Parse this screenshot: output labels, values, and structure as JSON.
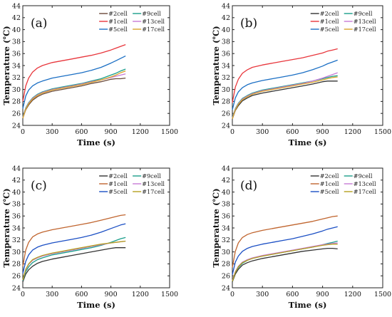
{
  "chart_data": [
    {
      "type": "line",
      "panel_label": "(a)",
      "xlabel": "Time (s)",
      "ylabel": "Temperature (℃)",
      "xlim": [
        0,
        1500
      ],
      "ylim": [
        24,
        44
      ],
      "xticks": [
        "0",
        "300",
        "600",
        "900",
        "1200",
        "1500"
      ],
      "yticks": [
        "24",
        "26",
        "28",
        "30",
        "32",
        "34",
        "36",
        "38",
        "40",
        "42",
        "44"
      ],
      "legend_position": "top-right",
      "series": [
        {
          "name": "#2cell",
          "color": "#6b4a3a",
          "x": [
            0,
            30,
            60,
            100,
            150,
            200,
            300,
            400,
            500,
            600,
            700,
            800,
            900,
            950,
            1000,
            1050
          ],
          "y": [
            25.2,
            26.6,
            27.4,
            28.2,
            28.8,
            29.2,
            29.7,
            30.0,
            30.3,
            30.6,
            31.0,
            31.3,
            31.7,
            31.8,
            31.8,
            31.9
          ]
        },
        {
          "name": "#9cell",
          "color": "#1a9e8a",
          "x": [
            0,
            30,
            60,
            100,
            150,
            200,
            300,
            400,
            500,
            600,
            700,
            800,
            900,
            950,
            1000,
            1050
          ],
          "y": [
            25.4,
            26.9,
            27.8,
            28.6,
            29.2,
            29.6,
            30.1,
            30.4,
            30.7,
            31.0,
            31.4,
            31.8,
            32.4,
            32.7,
            33.1,
            33.4
          ]
        },
        {
          "name": "#1cell",
          "color": "#e8363c",
          "x": [
            0,
            30,
            60,
            100,
            150,
            200,
            300,
            400,
            500,
            600,
            700,
            800,
            900,
            950,
            1000,
            1050
          ],
          "y": [
            28.0,
            30.6,
            31.9,
            32.9,
            33.6,
            34.0,
            34.5,
            34.8,
            35.1,
            35.4,
            35.7,
            36.1,
            36.6,
            36.9,
            37.2,
            37.5
          ]
        },
        {
          "name": "#13cell",
          "color": "#c77ad6",
          "x": [
            0,
            30,
            60,
            100,
            150,
            200,
            300,
            400,
            500,
            600,
            700,
            800,
            900,
            950,
            1000,
            1050
          ],
          "y": [
            25.3,
            26.8,
            27.7,
            28.5,
            29.1,
            29.5,
            30.0,
            30.3,
            30.6,
            30.9,
            31.3,
            31.6,
            32.0,
            32.2,
            32.4,
            32.6
          ]
        },
        {
          "name": "#5cell",
          "color": "#1b6fc4",
          "x": [
            0,
            30,
            60,
            100,
            150,
            200,
            300,
            400,
            500,
            600,
            700,
            800,
            900,
            950,
            1000,
            1050
          ],
          "y": [
            26.8,
            28.9,
            29.9,
            30.6,
            31.1,
            31.4,
            31.9,
            32.2,
            32.5,
            32.8,
            33.2,
            33.7,
            34.4,
            34.8,
            35.2,
            35.6
          ]
        },
        {
          "name": "#17cell",
          "color": "#d9a42a",
          "x": [
            0,
            30,
            60,
            100,
            150,
            200,
            300,
            400,
            500,
            600,
            700,
            800,
            900,
            950,
            1000,
            1050
          ],
          "y": [
            25.2,
            26.7,
            27.6,
            28.4,
            29.0,
            29.4,
            29.9,
            30.2,
            30.5,
            30.8,
            31.2,
            31.6,
            32.1,
            32.4,
            32.8,
            33.1
          ]
        }
      ]
    },
    {
      "type": "line",
      "panel_label": "(b)",
      "xlabel": "Time (s)",
      "ylabel": "Temperature (℃)",
      "xlim": [
        0,
        1500
      ],
      "ylim": [
        24,
        44
      ],
      "xticks": [
        "0",
        "300",
        "600",
        "900",
        "1200",
        "1500"
      ],
      "yticks": [
        "24",
        "26",
        "28",
        "30",
        "32",
        "34",
        "36",
        "38",
        "40",
        "42",
        "44"
      ],
      "legend_position": "top-right",
      "series": [
        {
          "name": "#2cell",
          "color": "#333333",
          "x": [
            0,
            30,
            60,
            100,
            150,
            200,
            300,
            400,
            500,
            600,
            700,
            800,
            900,
            950,
            1000,
            1050
          ],
          "y": [
            25.1,
            26.5,
            27.3,
            28.1,
            28.6,
            29.0,
            29.4,
            29.7,
            30.0,
            30.3,
            30.6,
            30.9,
            31.3,
            31.4,
            31.4,
            31.4
          ]
        },
        {
          "name": "#9cell",
          "color": "#1a9e8a",
          "x": [
            0,
            30,
            60,
            100,
            150,
            200,
            300,
            400,
            500,
            600,
            700,
            800,
            900,
            950,
            1000,
            1050
          ],
          "y": [
            25.3,
            26.8,
            27.7,
            28.5,
            29.0,
            29.4,
            29.9,
            30.2,
            30.5,
            30.8,
            31.1,
            31.4,
            31.8,
            32.0,
            32.2,
            32.3
          ]
        },
        {
          "name": "#1cell",
          "color": "#e8363c",
          "x": [
            0,
            30,
            60,
            100,
            150,
            200,
            300,
            400,
            500,
            600,
            700,
            800,
            900,
            950,
            1000,
            1050
          ],
          "y": [
            27.8,
            30.4,
            31.7,
            32.7,
            33.3,
            33.7,
            34.1,
            34.4,
            34.7,
            35.0,
            35.3,
            35.7,
            36.1,
            36.4,
            36.6,
            36.8
          ]
        },
        {
          "name": "#13cell",
          "color": "#c77ad6",
          "x": [
            0,
            30,
            60,
            100,
            150,
            200,
            300,
            400,
            500,
            600,
            700,
            800,
            900,
            950,
            1000,
            1050
          ],
          "y": [
            25.2,
            26.7,
            27.6,
            28.4,
            28.9,
            29.3,
            29.8,
            30.1,
            30.4,
            30.7,
            31.0,
            31.4,
            31.9,
            32.2,
            32.5,
            32.8
          ]
        },
        {
          "name": "#5cell",
          "color": "#1b6fc4",
          "x": [
            0,
            30,
            60,
            100,
            150,
            200,
            300,
            400,
            500,
            600,
            700,
            800,
            900,
            950,
            1000,
            1050
          ],
          "y": [
            26.6,
            28.6,
            29.6,
            30.3,
            30.8,
            31.1,
            31.5,
            31.8,
            32.1,
            32.4,
            32.8,
            33.3,
            33.9,
            34.3,
            34.6,
            34.9
          ]
        },
        {
          "name": "#17cell",
          "color": "#d9a42a",
          "x": [
            0,
            30,
            60,
            100,
            150,
            200,
            300,
            400,
            500,
            600,
            700,
            800,
            900,
            950,
            1000,
            1050
          ],
          "y": [
            25.1,
            26.6,
            27.5,
            28.3,
            28.8,
            29.2,
            29.7,
            30.0,
            30.3,
            30.6,
            30.9,
            31.2,
            31.6,
            31.8,
            32.0,
            32.1
          ]
        }
      ]
    },
    {
      "type": "line",
      "panel_label": "(c)",
      "xlabel": "Time (s)",
      "ylabel": "Temperature (℃)",
      "xlim": [
        0,
        1500
      ],
      "ylim": [
        24,
        44
      ],
      "xticks": [
        "0",
        "300",
        "600",
        "900",
        "1200",
        "1500"
      ],
      "yticks": [
        "24",
        "26",
        "28",
        "30",
        "32",
        "34",
        "36",
        "38",
        "40",
        "42",
        "44"
      ],
      "legend_position": "top-right",
      "series": [
        {
          "name": "#2cell",
          "color": "#333333",
          "x": [
            0,
            30,
            60,
            100,
            150,
            200,
            300,
            400,
            500,
            600,
            700,
            800,
            900,
            950,
            1000,
            1050
          ],
          "y": [
            25.0,
            26.3,
            27.0,
            27.6,
            28.1,
            28.4,
            28.8,
            29.1,
            29.4,
            29.7,
            30.0,
            30.3,
            30.6,
            30.7,
            30.7,
            30.7
          ]
        },
        {
          "name": "#9cell",
          "color": "#1a9e8a",
          "x": [
            0,
            30,
            60,
            100,
            150,
            200,
            300,
            400,
            500,
            600,
            700,
            800,
            900,
            950,
            1000,
            1050
          ],
          "y": [
            25.2,
            26.7,
            27.5,
            28.2,
            28.7,
            29.0,
            29.5,
            29.8,
            30.1,
            30.4,
            30.7,
            31.1,
            31.6,
            31.9,
            32.2,
            32.4
          ]
        },
        {
          "name": "#1cell",
          "color": "#c0652f",
          "x": [
            0,
            30,
            60,
            100,
            150,
            200,
            300,
            400,
            500,
            600,
            700,
            800,
            900,
            950,
            1000,
            1050
          ],
          "y": [
            27.6,
            30.3,
            31.6,
            32.5,
            33.0,
            33.3,
            33.7,
            34.0,
            34.3,
            34.6,
            34.9,
            35.3,
            35.7,
            35.9,
            36.1,
            36.2
          ]
        },
        {
          "name": "#13cell",
          "color": "#c77ad6",
          "x": [
            0,
            30,
            60,
            100,
            150,
            200,
            300,
            400,
            500,
            600,
            700,
            800,
            900,
            950,
            1000,
            1050
          ],
          "y": [
            25.3,
            27.0,
            27.9,
            28.6,
            29.0,
            29.3,
            29.7,
            30.0,
            30.3,
            30.6,
            30.9,
            31.2,
            31.5,
            31.6,
            31.7,
            31.8
          ]
        },
        {
          "name": "#5cell",
          "color": "#1b4fc4",
          "x": [
            0,
            30,
            60,
            100,
            150,
            200,
            300,
            400,
            500,
            600,
            700,
            800,
            900,
            950,
            1000,
            1050
          ],
          "y": [
            26.4,
            28.4,
            29.5,
            30.3,
            30.8,
            31.1,
            31.5,
            31.8,
            32.1,
            32.4,
            32.8,
            33.3,
            33.9,
            34.2,
            34.5,
            34.7
          ]
        },
        {
          "name": "#17cell",
          "color": "#b5a020",
          "x": [
            0,
            30,
            60,
            100,
            150,
            200,
            300,
            400,
            500,
            600,
            700,
            800,
            900,
            950,
            1000,
            1050
          ],
          "y": [
            25.3,
            27.1,
            28.0,
            28.7,
            29.1,
            29.4,
            29.8,
            30.1,
            30.4,
            30.7,
            31.0,
            31.3,
            31.5,
            31.6,
            31.7,
            31.8
          ]
        }
      ]
    },
    {
      "type": "line",
      "panel_label": "(d)",
      "xlabel": "Time (s)",
      "ylabel": "Temperature (℃)",
      "xlim": [
        0,
        1500
      ],
      "ylim": [
        24,
        44
      ],
      "xticks": [
        "0",
        "300",
        "600",
        "900",
        "1200",
        "1500"
      ],
      "yticks": [
        "24",
        "26",
        "28",
        "30",
        "32",
        "34",
        "36",
        "38",
        "40",
        "42",
        "44"
      ],
      "legend_position": "top-right",
      "series": [
        {
          "name": "#2cell",
          "color": "#333333",
          "x": [
            0,
            30,
            60,
            100,
            150,
            200,
            300,
            400,
            500,
            600,
            700,
            800,
            900,
            950,
            1000,
            1050
          ],
          "y": [
            25.0,
            26.3,
            27.1,
            27.8,
            28.2,
            28.5,
            28.9,
            29.2,
            29.5,
            29.8,
            30.1,
            30.3,
            30.5,
            30.6,
            30.6,
            30.5
          ]
        },
        {
          "name": "#9cell",
          "color": "#1a9e8a",
          "x": [
            0,
            30,
            60,
            100,
            150,
            200,
            300,
            400,
            500,
            600,
            700,
            800,
            900,
            950,
            1000,
            1050
          ],
          "y": [
            25.1,
            26.6,
            27.4,
            28.1,
            28.6,
            28.9,
            29.3,
            29.6,
            29.9,
            30.2,
            30.5,
            30.8,
            31.2,
            31.4,
            31.6,
            31.8
          ]
        },
        {
          "name": "#1cell",
          "color": "#c0652f",
          "x": [
            0,
            30,
            60,
            100,
            150,
            200,
            300,
            400,
            500,
            600,
            700,
            800,
            900,
            950,
            1000,
            1050
          ],
          "y": [
            27.4,
            30.1,
            31.5,
            32.4,
            32.9,
            33.2,
            33.6,
            33.9,
            34.2,
            34.5,
            34.8,
            35.1,
            35.5,
            35.7,
            35.9,
            36.0
          ]
        },
        {
          "name": "#13cell",
          "color": "#c77ad6",
          "x": [
            0,
            30,
            60,
            100,
            150,
            200,
            300,
            400,
            500,
            600,
            700,
            800,
            900,
            950,
            1000,
            1050
          ],
          "y": [
            25.2,
            26.7,
            27.6,
            28.3,
            28.7,
            29.0,
            29.4,
            29.7,
            30.0,
            30.3,
            30.6,
            30.9,
            31.2,
            31.3,
            31.4,
            31.5
          ]
        },
        {
          "name": "#5cell",
          "color": "#1b4fc4",
          "x": [
            0,
            30,
            60,
            100,
            150,
            200,
            300,
            400,
            500,
            600,
            700,
            800,
            900,
            950,
            1000,
            1050
          ],
          "y": [
            26.2,
            28.3,
            29.3,
            30.1,
            30.6,
            30.9,
            31.3,
            31.6,
            31.9,
            32.2,
            32.6,
            33.0,
            33.5,
            33.8,
            34.0,
            34.2
          ]
        },
        {
          "name": "#17cell",
          "color": "#b5a020",
          "x": [
            0,
            30,
            60,
            100,
            150,
            200,
            300,
            400,
            500,
            600,
            700,
            800,
            900,
            950,
            1000,
            1050
          ],
          "y": [
            25.1,
            26.6,
            27.5,
            28.2,
            28.6,
            28.9,
            29.3,
            29.6,
            29.9,
            30.2,
            30.5,
            30.8,
            31.1,
            31.2,
            31.3,
            31.3
          ]
        }
      ]
    }
  ]
}
